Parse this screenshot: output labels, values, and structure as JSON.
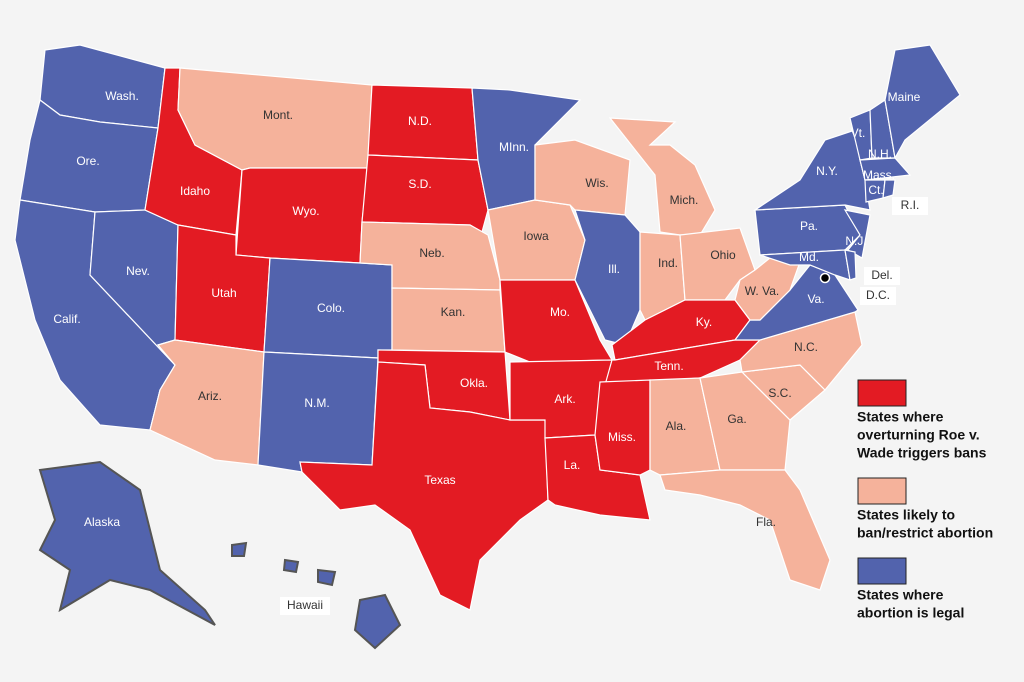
{
  "states": [
    {
      "label": "Wash.",
      "category": 2
    },
    {
      "label": "Ore.",
      "category": 2
    },
    {
      "label": "Calif.",
      "category": 2
    },
    {
      "label": "Nev.",
      "category": 2
    },
    {
      "label": "Idaho",
      "category": 0
    },
    {
      "label": "Mont.",
      "category": 1
    },
    {
      "label": "Wyo.",
      "category": 0
    },
    {
      "label": "Utah",
      "category": 0
    },
    {
      "label": "Colo.",
      "category": 2
    },
    {
      "label": "Ariz.",
      "category": 1
    },
    {
      "label": "N.M.",
      "category": 2
    },
    {
      "label": "N.D.",
      "category": 0
    },
    {
      "label": "S.D.",
      "category": 0
    },
    {
      "label": "Neb.",
      "category": 1
    },
    {
      "label": "Kan.",
      "category": 1
    },
    {
      "label": "Okla.",
      "category": 0
    },
    {
      "label": "Texas",
      "category": 0
    },
    {
      "label": "MInn.",
      "category": 2
    },
    {
      "label": "Iowa",
      "category": 1
    },
    {
      "label": "Mo.",
      "category": 0
    },
    {
      "label": "Ark.",
      "category": 0
    },
    {
      "label": "La.",
      "category": 0
    },
    {
      "label": "Wis.",
      "category": 1
    },
    {
      "label": "Ill.",
      "category": 2
    },
    {
      "label": "Mich.",
      "category": 1
    },
    {
      "label": "Ind.",
      "category": 1
    },
    {
      "label": "Ohio",
      "category": 1
    },
    {
      "label": "Ky.",
      "category": 0
    },
    {
      "label": "Tenn.",
      "category": 0
    },
    {
      "label": "Miss.",
      "category": 0
    },
    {
      "label": "Ala.",
      "category": 1
    },
    {
      "label": "Ga.",
      "category": 1
    },
    {
      "label": "Fla.",
      "category": 1
    },
    {
      "label": "S.C.",
      "category": 1
    },
    {
      "label": "N.C.",
      "category": 1
    },
    {
      "label": "Va.",
      "category": 2
    },
    {
      "label": "W. Va.",
      "category": 1
    },
    {
      "label": "Pa.",
      "category": 2
    },
    {
      "label": "N.Y.",
      "category": 2
    },
    {
      "label": "N.J.",
      "category": 2
    },
    {
      "label": "Md.",
      "category": 2
    },
    {
      "label": "Del.",
      "category": 2
    },
    {
      "label": "D.C.",
      "category": 2
    },
    {
      "label": "Vt.",
      "category": 2
    },
    {
      "label": "N.H.",
      "category": 2
    },
    {
      "label": "Maine",
      "category": 2
    },
    {
      "label": "Mass.",
      "category": 2
    },
    {
      "label": "Ct.",
      "category": 2
    },
    {
      "label": "R.I.",
      "category": 2
    },
    {
      "label": "Alaska",
      "category": 2
    },
    {
      "label": "Hawaii",
      "category": 2
    }
  ],
  "legend": [
    {
      "lines": [
        "States where",
        "overturning Roe v.",
        "Wade triggers bans"
      ],
      "color": "#e31b23"
    },
    {
      "lines": [
        "States likely to",
        "ban/restrict abortion"
      ],
      "color": "#f5b29b"
    },
    {
      "lines": [
        "States where",
        "abortion is legal"
      ],
      "color": "#5263ad"
    }
  ]
}
